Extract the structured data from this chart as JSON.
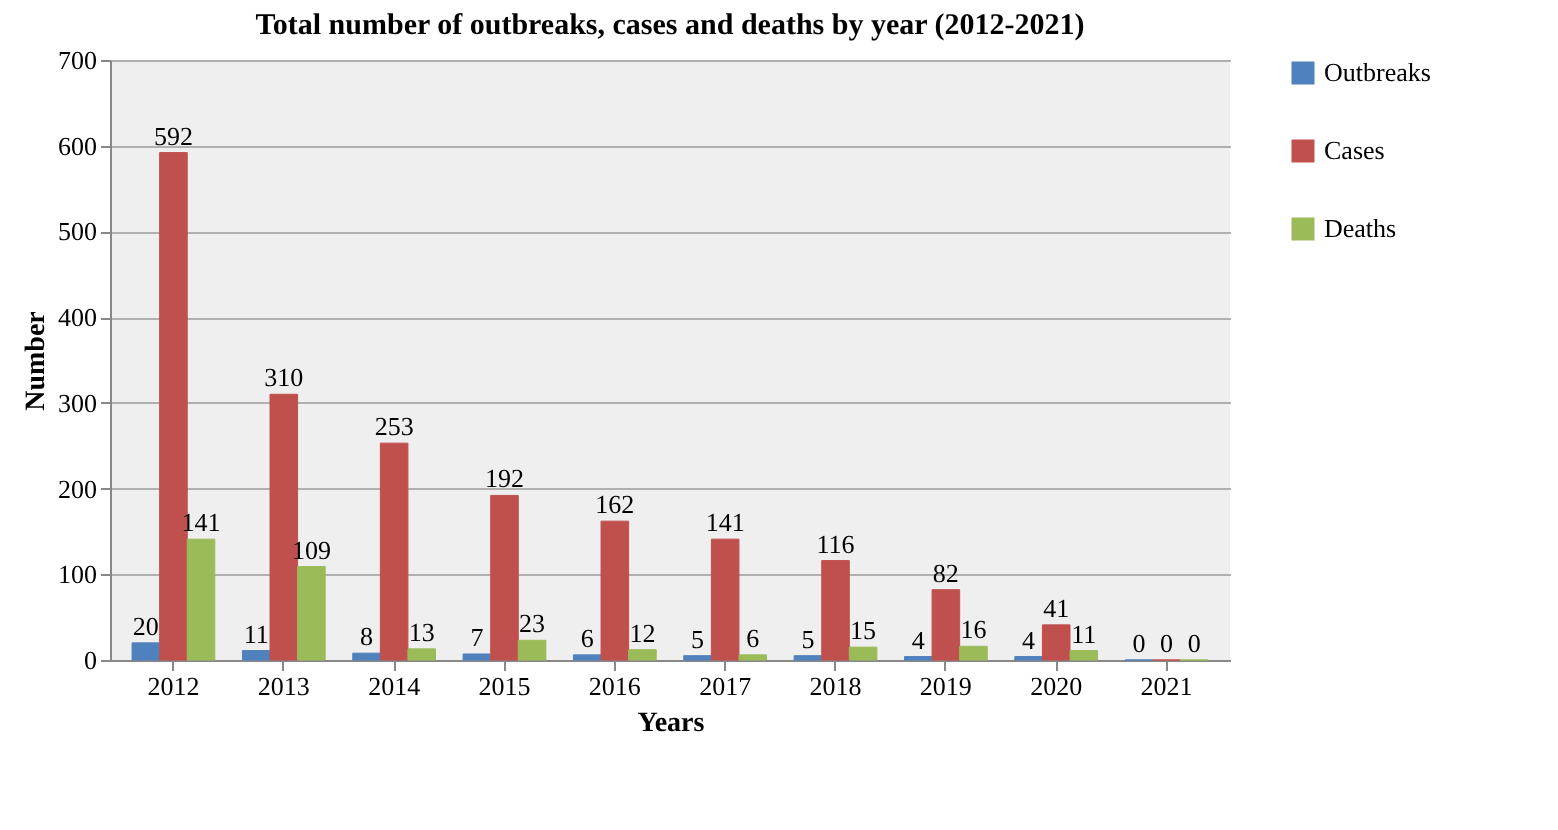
{
  "chart_data": {
    "type": "bar",
    "title": "Total number of outbreaks, cases and deaths by year (2012-2021)",
    "xlabel": "Years",
    "ylabel": "Number",
    "categories": [
      "2012",
      "2013",
      "2014",
      "2015",
      "2016",
      "2017",
      "2018",
      "2019",
      "2020",
      "2021"
    ],
    "series": [
      {
        "name": "Outbreaks",
        "color": "#4f81bd",
        "values": [
          20,
          11,
          8,
          7,
          6,
          5,
          5,
          4,
          4,
          0
        ]
      },
      {
        "name": "Cases",
        "color": "#c0504d",
        "values": [
          592,
          310,
          253,
          192,
          162,
          141,
          116,
          82,
          41,
          0
        ]
      },
      {
        "name": "Deaths",
        "color": "#9bbb59",
        "values": [
          141,
          109,
          13,
          23,
          12,
          6,
          15,
          16,
          11,
          0
        ]
      }
    ],
    "ylim": [
      0,
      700
    ],
    "yticks": [
      0,
      100,
      200,
      300,
      400,
      500,
      600,
      700
    ],
    "grid": "y",
    "legend": "right",
    "data_labels": true
  }
}
